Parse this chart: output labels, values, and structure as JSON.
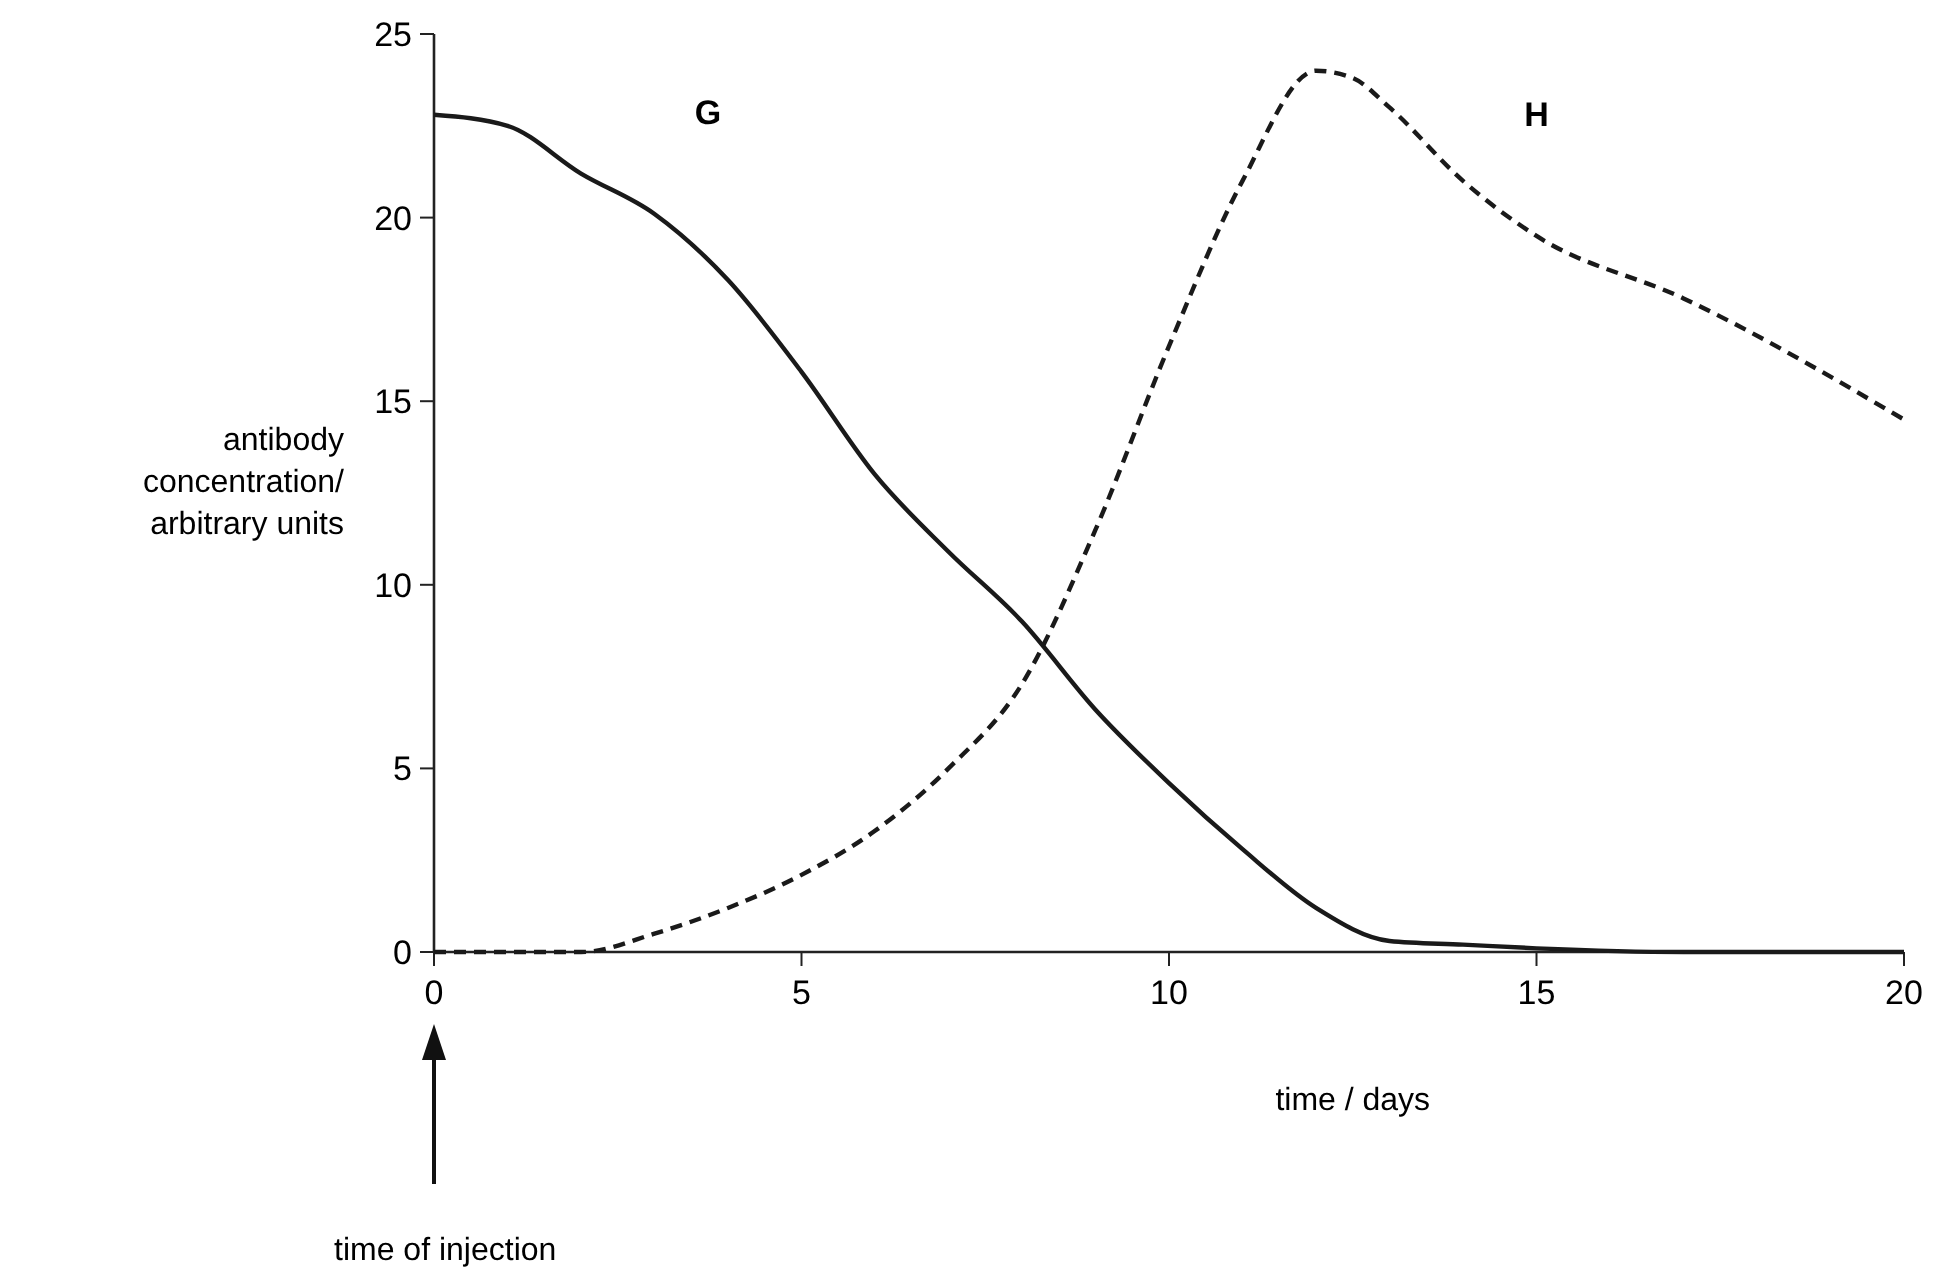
{
  "chart_data": {
    "type": "line",
    "xlabel": "time / days",
    "ylabel": "antibody\nconcentration/\narbitrary units",
    "xlim": [
      0,
      20
    ],
    "ylim": [
      0,
      25
    ],
    "xticks": [
      0,
      5,
      10,
      15,
      20
    ],
    "yticks": [
      0,
      5,
      10,
      15,
      20,
      25
    ],
    "grid": false,
    "series": [
      {
        "name": "G",
        "color": "#1a1a1a",
        "line_style": "solid",
        "x": [
          0,
          1,
          2,
          3,
          4,
          5,
          6,
          7,
          8,
          9,
          10,
          11,
          12,
          13,
          14,
          15,
          17,
          20
        ],
        "values": [
          22.8,
          22.5,
          21.2,
          20.1,
          18.3,
          15.8,
          13.0,
          10.9,
          9.0,
          6.6,
          4.6,
          2.8,
          1.2,
          0.3,
          0.2,
          0.1,
          0,
          0
        ]
      },
      {
        "name": "H",
        "color": "#1a1a1a",
        "line_style": "dashed",
        "x": [
          0,
          2,
          3,
          4,
          5,
          6,
          7,
          8,
          9,
          10,
          11,
          12,
          12.5,
          13,
          14,
          15,
          17,
          20
        ],
        "values": [
          0,
          0,
          0.5,
          1.2,
          2.1,
          3.3,
          5.0,
          7.3,
          11.5,
          16.5,
          21.0,
          24.0,
          23.8,
          23.0,
          21.0,
          19.5,
          17.8,
          14.5
        ]
      }
    ],
    "annotations": [
      "time of injection"
    ]
  }
}
